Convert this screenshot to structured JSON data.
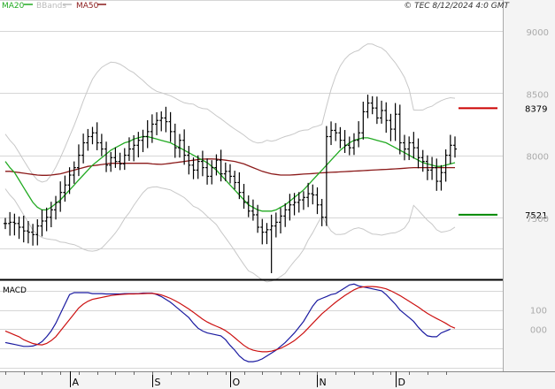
{
  "header": {
    "legend": [
      {
        "label": "MA20",
        "color": "#22aa22"
      },
      {
        "label": "BBands",
        "color": "#bbbbbb"
      },
      {
        "label": "MA50",
        "color": "#8b1a1a"
      }
    ],
    "copyright": "© TEC 8/12/2024 4:0 GMT"
  },
  "chart_data": [
    {
      "type": "ohlc",
      "title": "",
      "legend_placement": "top-left",
      "ylim": [
        7000,
        9250
      ],
      "yticks": [
        {
          "value": 9000,
          "label": "9000"
        },
        {
          "value": 8500,
          "label": "8500"
        },
        {
          "value": 8000,
          "label": "8000"
        },
        {
          "value": 7500,
          "label": "7500"
        }
      ],
      "x_month_labels": [
        {
          "index": 14,
          "label": "A"
        },
        {
          "index": 32,
          "label": "S"
        },
        {
          "index": 49,
          "label": "O"
        },
        {
          "index": 68,
          "label": "N"
        },
        {
          "index": 85,
          "label": "D"
        }
      ],
      "grid": "horizontal",
      "levels": [
        {
          "value": 8379,
          "label": "8379",
          "color": "#cc0000"
        },
        {
          "value": 7521,
          "label": "7521",
          "color": "#008800"
        }
      ],
      "series": [
        {
          "name": "OHLC",
          "close": [
            7450,
            7460,
            7450,
            7420,
            7390,
            7380,
            7360,
            7430,
            7470,
            7500,
            7560,
            7620,
            7700,
            7760,
            7840,
            7900,
            8000,
            8100,
            8150,
            8180,
            8100,
            8050,
            7920,
            7980,
            7950,
            7930,
            8000,
            8050,
            8080,
            8120,
            8150,
            8190,
            8250,
            8280,
            8300,
            8270,
            8190,
            8060,
            8120,
            8000,
            7920,
            7880,
            7950,
            7900,
            7830,
            7900,
            7960,
            7850,
            7870,
            7830,
            7780,
            7700,
            7620,
            7550,
            7520,
            7420,
            7380,
            7400,
            7430,
            7460,
            7510,
            7560,
            7600,
            7620,
            7640,
            7660,
            7690,
            7680,
            7600,
            7500,
            8150,
            8200,
            8180,
            8120,
            8080,
            8060,
            8120,
            8180,
            8350,
            8420,
            8380,
            8300,
            8360,
            8280,
            8210,
            8330,
            8100,
            8050,
            8100,
            8060,
            7980,
            7950,
            7880,
            7900,
            7790,
            7860,
            8000,
            8080,
            8050
          ]
        },
        {
          "name": "MA20",
          "color": "#22aa22",
          "values": [
            7950,
            7900,
            7860,
            7800,
            7740,
            7680,
            7620,
            7580,
            7560,
            7560,
            7580,
            7610,
            7640,
            7680,
            7720,
            7760,
            7800,
            7840,
            7880,
            7920,
            7950,
            7980,
            8010,
            8040,
            8060,
            8080,
            8100,
            8110,
            8130,
            8140,
            8150,
            8150,
            8140,
            8130,
            8120,
            8110,
            8100,
            8080,
            8060,
            8040,
            8020,
            8000,
            7980,
            7960,
            7940,
            7910,
            7880,
            7840,
            7800,
            7760,
            7720,
            7680,
            7640,
            7600,
            7580,
            7560,
            7550,
            7550,
            7550,
            7560,
            7580,
            7600,
            7630,
            7660,
            7690,
            7720,
            7760,
            7800,
            7840,
            7880,
            7920,
            7960,
            8000,
            8040,
            8070,
            8100,
            8120,
            8130,
            8140,
            8140,
            8130,
            8120,
            8110,
            8100,
            8080,
            8060,
            8040,
            8020,
            8000,
            7980,
            7960,
            7940,
            7930,
            7920,
            7910,
            7910,
            7920,
            7930,
            7940
          ]
        },
        {
          "name": "MA50",
          "color": "#8b1a1a",
          "values": [
            7870,
            7870,
            7865,
            7860,
            7855,
            7850,
            7845,
            7840,
            7838,
            7838,
            7840,
            7845,
            7850,
            7860,
            7870,
            7880,
            7890,
            7900,
            7910,
            7915,
            7920,
            7925,
            7930,
            7935,
            7935,
            7935,
            7935,
            7935,
            7935,
            7935,
            7935,
            7935,
            7930,
            7928,
            7926,
            7930,
            7935,
            7940,
            7945,
            7950,
            7955,
            7960,
            7965,
            7968,
            7970,
            7970,
            7968,
            7965,
            7960,
            7955,
            7950,
            7940,
            7930,
            7915,
            7900,
            7885,
            7870,
            7860,
            7850,
            7845,
            7840,
            7840,
            7840,
            7842,
            7845,
            7848,
            7850,
            7852,
            7855,
            7858,
            7860,
            7862,
            7864,
            7866,
            7868,
            7870,
            7872,
            7874,
            7876,
            7878,
            7880,
            7882,
            7884,
            7886,
            7888,
            7890,
            7892,
            7895,
            7898,
            7900,
            7900,
            7900,
            7900,
            7900,
            7900,
            7900,
            7900,
            7900,
            7900
          ]
        }
      ]
    },
    {
      "type": "line",
      "title": "MACD",
      "ylim": [
        -220,
        250
      ],
      "yticks": [
        {
          "value": 100,
          "label": "100"
        },
        {
          "value": 0,
          "label": "000"
        }
      ],
      "grid": "horizontal",
      "series": [
        {
          "name": "MACD",
          "color": "#1a1aa0",
          "values": [
            -70,
            -75,
            -80,
            -85,
            -90,
            -90,
            -88,
            -80,
            -65,
            -40,
            -10,
            30,
            80,
            130,
            180,
            190,
            190,
            190,
            190,
            185,
            185,
            185,
            183,
            183,
            183,
            183,
            185,
            185,
            185,
            185,
            188,
            188,
            188,
            180,
            170,
            155,
            140,
            120,
            100,
            80,
            60,
            30,
            5,
            -10,
            -20,
            -25,
            -30,
            -35,
            -55,
            -85,
            -110,
            -140,
            -160,
            -170,
            -170,
            -165,
            -155,
            -140,
            -125,
            -110,
            -90,
            -70,
            -45,
            -20,
            10,
            40,
            80,
            120,
            150,
            160,
            170,
            180,
            185,
            200,
            215,
            230,
            235,
            225,
            220,
            215,
            210,
            205,
            200,
            180,
            155,
            130,
            100,
            80,
            60,
            40,
            10,
            -15,
            -35,
            -40,
            -40,
            -20,
            -10,
            0
          ]
        },
        {
          "name": "Signal",
          "color": "#cc1111",
          "values": [
            -10,
            -20,
            -30,
            -40,
            -55,
            -65,
            -75,
            -80,
            -82,
            -75,
            -60,
            -40,
            -10,
            20,
            50,
            80,
            110,
            130,
            145,
            155,
            160,
            165,
            170,
            175,
            178,
            180,
            182,
            183,
            183,
            184,
            185,
            186,
            186,
            183,
            178,
            170,
            160,
            148,
            135,
            120,
            105,
            88,
            70,
            52,
            37,
            25,
            15,
            5,
            -8,
            -25,
            -45,
            -65,
            -85,
            -100,
            -110,
            -115,
            -118,
            -118,
            -115,
            -108,
            -100,
            -88,
            -75,
            -60,
            -40,
            -20,
            5,
            30,
            55,
            80,
            100,
            120,
            140,
            158,
            175,
            190,
            205,
            215,
            220,
            222,
            222,
            220,
            216,
            210,
            200,
            188,
            175,
            160,
            145,
            130,
            115,
            98,
            82,
            68,
            55,
            43,
            30,
            15,
            5
          ]
        }
      ]
    }
  ]
}
